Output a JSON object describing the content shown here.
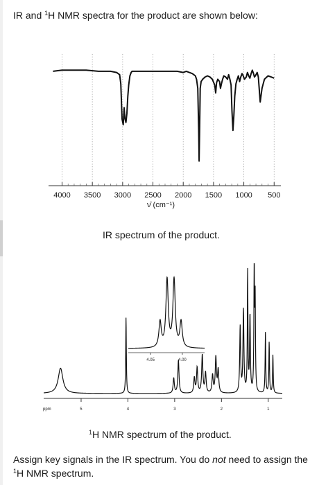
{
  "intro": {
    "part1": "IR and ",
    "sup": "1",
    "part2": "H NMR spectra for the product are shown below:"
  },
  "ir_caption": "IR spectrum of the product.",
  "nmr_caption": {
    "sup": "1",
    "text": "H NMR spectrum of the product."
  },
  "task": {
    "part1": "Assign key signals in the IR spectrum. You do ",
    "em": "not",
    "part2": " need to assign the ",
    "sup": "1",
    "part3": "H NMR spectrum."
  },
  "chart_data": [
    {
      "type": "line",
      "title": "",
      "xlabel": "ν̄ (cm⁻¹)",
      "ylabel": "",
      "xlim": [
        4200,
        400
      ],
      "ylim": [
        0,
        1
      ],
      "x_ticks": [
        4000,
        3500,
        3000,
        2500,
        2000,
        1500,
        1000,
        500
      ],
      "grid": "vertical-dotted",
      "series": [
        {
          "x": [
            4150,
            4000,
            3800,
            3600,
            3400,
            3200,
            3100,
            3050,
            3030,
            3010,
            2990,
            2975,
            2960,
            2945,
            2930,
            2915,
            2900,
            2880,
            2860,
            2845,
            2800,
            2700,
            2600,
            2500,
            2400,
            2300,
            2200,
            2100,
            2000,
            1950,
            1900,
            1850,
            1800,
            1780,
            1760,
            1745,
            1738,
            1730,
            1720,
            1705,
            1680,
            1640,
            1600,
            1560,
            1520,
            1480,
            1465,
            1450,
            1430,
            1400,
            1385,
            1370,
            1350,
            1330,
            1300,
            1270,
            1250,
            1230,
            1210,
            1195,
            1180,
            1165,
            1150,
            1130,
            1110,
            1090,
            1070,
            1050,
            1030,
            1010,
            990,
            960,
            940,
            920,
            900,
            880,
            860,
            840,
            825,
            810,
            780,
            760,
            730,
            700,
            660,
            600,
            550,
            500
          ],
          "y": [
            0.97,
            0.98,
            0.98,
            0.98,
            0.97,
            0.97,
            0.96,
            0.94,
            0.86,
            0.55,
            0.5,
            0.65,
            0.55,
            0.52,
            0.6,
            0.75,
            0.85,
            0.93,
            0.96,
            0.97,
            0.97,
            0.97,
            0.97,
            0.97,
            0.97,
            0.97,
            0.97,
            0.97,
            0.96,
            0.97,
            0.96,
            0.95,
            0.93,
            0.9,
            0.82,
            0.45,
            0.18,
            0.45,
            0.82,
            0.88,
            0.9,
            0.92,
            0.93,
            0.92,
            0.9,
            0.85,
            0.78,
            0.87,
            0.9,
            0.88,
            0.82,
            0.86,
            0.9,
            0.93,
            0.92,
            0.9,
            0.94,
            0.9,
            0.85,
            0.62,
            0.45,
            0.58,
            0.75,
            0.86,
            0.9,
            0.93,
            0.88,
            0.92,
            0.95,
            0.93,
            0.9,
            0.92,
            0.96,
            0.93,
            0.91,
            0.95,
            0.98,
            0.95,
            0.92,
            0.93,
            0.96,
            0.92,
            0.7,
            0.82,
            0.9,
            0.93,
            0.92,
            0.91
          ]
        }
      ]
    },
    {
      "type": "line",
      "title": "",
      "xlabel": "ppm",
      "ylabel": "",
      "xlim": [
        5.8,
        0.7
      ],
      "ylim": [
        0,
        1
      ],
      "x_ticks": [
        5,
        4,
        3,
        2,
        1
      ],
      "peaks": [
        {
          "ppm": 5.44,
          "height": 0.2,
          "width": 0.06
        },
        {
          "ppm": 4.04,
          "height": 0.6,
          "width": 0.008
        },
        {
          "ppm": 3.02,
          "height": 0.12,
          "width": 0.015
        },
        {
          "ppm": 2.92,
          "height": 0.26,
          "width": 0.015
        },
        {
          "ppm": 2.58,
          "height": 0.12,
          "width": 0.015
        },
        {
          "ppm": 2.52,
          "height": 0.2,
          "width": 0.015
        },
        {
          "ppm": 2.41,
          "height": 0.3,
          "width": 0.015
        },
        {
          "ppm": 2.34,
          "height": 0.16,
          "width": 0.015
        },
        {
          "ppm": 2.19,
          "height": 0.14,
          "width": 0.015
        },
        {
          "ppm": 2.12,
          "height": 0.28,
          "width": 0.015
        },
        {
          "ppm": 2.07,
          "height": 0.18,
          "width": 0.015
        },
        {
          "ppm": 1.6,
          "height": 0.52,
          "width": 0.012
        },
        {
          "ppm": 1.53,
          "height": 0.65,
          "width": 0.012
        },
        {
          "ppm": 1.44,
          "height": 0.95,
          "width": 0.008
        },
        {
          "ppm": 1.39,
          "height": 0.6,
          "width": 0.01
        },
        {
          "ppm": 1.3,
          "height": 0.98,
          "width": 0.008
        },
        {
          "ppm": 1.28,
          "height": 0.72,
          "width": 0.008
        },
        {
          "ppm": 1.06,
          "height": 0.48,
          "width": 0.008
        },
        {
          "ppm": 0.98,
          "height": 0.4,
          "width": 0.008
        },
        {
          "ppm": 0.9,
          "height": 0.3,
          "width": 0.008
        }
      ],
      "inset": {
        "x_ticks": [
          4.05,
          4.0
        ],
        "xlim": [
          4.085,
          3.965
        ],
        "peaks": [
          {
            "ppm": 4.035,
            "height": 0.36
          },
          {
            "ppm": 4.024,
            "height": 0.95
          },
          {
            "ppm": 4.013,
            "height": 0.95
          },
          {
            "ppm": 4.002,
            "height": 0.36
          }
        ]
      }
    }
  ]
}
